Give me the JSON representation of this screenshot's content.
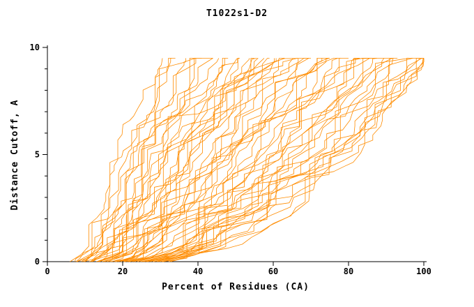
{
  "chart_data": {
    "type": "line",
    "title": "T1022s1-D2",
    "xlabel": "Percent of Residues (CA)",
    "ylabel": "Distance Cutoff, A",
    "xlim": [
      0,
      100
    ],
    "ylim": [
      0,
      10
    ],
    "xticks": [
      0,
      20,
      40,
      60,
      80,
      100
    ],
    "yticks_major": [
      0,
      5,
      10
    ],
    "yticks_minor": [
      1,
      2,
      3,
      4,
      6,
      7,
      8,
      9
    ],
    "grid": false,
    "line_color": "#ff8c00",
    "axis_color": "#000000",
    "y_top_of_curves": 9.5,
    "curves": [
      {
        "a": 6,
        "m": 18,
        "e": 30
      },
      {
        "a": 8,
        "m": 21,
        "e": 33
      },
      {
        "a": 7,
        "m": 20,
        "e": 34
      },
      {
        "a": 9,
        "m": 23,
        "e": 36
      },
      {
        "a": 8,
        "m": 23,
        "e": 38
      },
      {
        "a": 10,
        "m": 25,
        "e": 39
      },
      {
        "a": 9,
        "m": 25,
        "e": 41
      },
      {
        "a": 11,
        "m": 27,
        "e": 42
      },
      {
        "a": 10,
        "m": 28,
        "e": 44
      },
      {
        "a": 12,
        "m": 29,
        "e": 45
      },
      {
        "a": 11,
        "m": 30,
        "e": 47
      },
      {
        "a": 13,
        "m": 32,
        "e": 48
      },
      {
        "a": 12,
        "m": 33,
        "e": 50
      },
      {
        "a": 14,
        "m": 34,
        "e": 51
      },
      {
        "a": 13,
        "m": 35,
        "e": 53
      },
      {
        "a": 15,
        "m": 37,
        "e": 54
      },
      {
        "a": 14,
        "m": 38,
        "e": 56
      },
      {
        "a": 16,
        "m": 39,
        "e": 57
      },
      {
        "a": 15,
        "m": 40,
        "e": 59
      },
      {
        "a": 17,
        "m": 42,
        "e": 60
      },
      {
        "a": 16,
        "m": 43,
        "e": 62
      },
      {
        "a": 18,
        "m": 44,
        "e": 63
      },
      {
        "a": 17,
        "m": 45,
        "e": 65
      },
      {
        "a": 19,
        "m": 47,
        "e": 66
      },
      {
        "a": 18,
        "m": 48,
        "e": 68
      },
      {
        "a": 20,
        "m": 49,
        "e": 69
      },
      {
        "a": 19,
        "m": 51,
        "e": 71
      },
      {
        "a": 21,
        "m": 52,
        "e": 72
      },
      {
        "a": 20,
        "m": 53,
        "e": 74
      },
      {
        "a": 22,
        "m": 55,
        "e": 75
      },
      {
        "a": 21,
        "m": 56,
        "e": 77
      },
      {
        "a": 23,
        "m": 57,
        "e": 78
      },
      {
        "a": 22,
        "m": 59,
        "e": 80
      },
      {
        "a": 24,
        "m": 60,
        "e": 81
      },
      {
        "a": 23,
        "m": 61,
        "e": 83
      },
      {
        "a": 25,
        "m": 63,
        "e": 84
      },
      {
        "a": 24,
        "m": 64,
        "e": 86
      },
      {
        "a": 26,
        "m": 65,
        "e": 87
      },
      {
        "a": 25,
        "m": 67,
        "e": 89
      },
      {
        "a": 27,
        "m": 68,
        "e": 90
      },
      {
        "a": 26,
        "m": 69,
        "e": 92
      },
      {
        "a": 28,
        "m": 71,
        "e": 93
      },
      {
        "a": 27,
        "m": 72,
        "e": 95
      },
      {
        "a": 29,
        "m": 73,
        "e": 96
      },
      {
        "a": 28,
        "m": 75,
        "e": 98
      },
      {
        "a": 30,
        "m": 76,
        "e": 99
      },
      {
        "a": 29,
        "m": 77,
        "e": 100
      },
      {
        "a": 31,
        "m": 79,
        "e": 100
      },
      {
        "a": 30,
        "m": 80,
        "e": 100
      },
      {
        "a": 32,
        "m": 81,
        "e": 100
      },
      {
        "a": 31,
        "m": 82,
        "e": 100
      },
      {
        "a": 12,
        "m": 30,
        "e": 70
      },
      {
        "a": 15,
        "m": 45,
        "e": 85
      },
      {
        "a": 20,
        "m": 38,
        "e": 55
      },
      {
        "a": 8,
        "m": 22,
        "e": 50
      },
      {
        "a": 25,
        "m": 60,
        "e": 92
      },
      {
        "a": 10,
        "m": 28,
        "e": 60
      },
      {
        "a": 33,
        "m": 83,
        "e": 100
      },
      {
        "a": 18,
        "m": 46,
        "e": 75
      },
      {
        "a": 14,
        "m": 36,
        "e": 65
      }
    ]
  }
}
